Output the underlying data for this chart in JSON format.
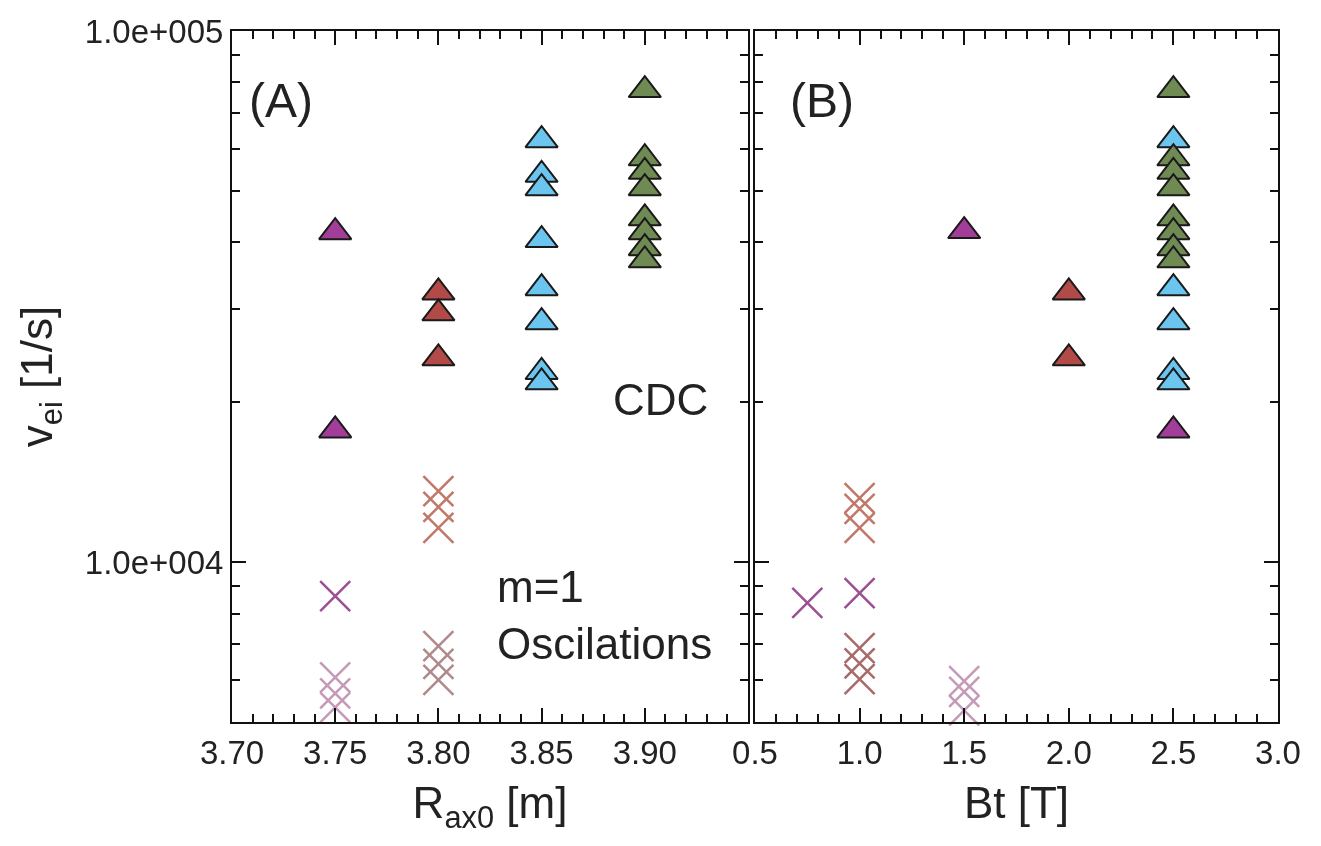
{
  "chart_data": [
    {
      "type": "scatter",
      "xlabel": "R$_{ax0}$ [m]",
      "ylabel": "v$_{ei}$ [1/s]",
      "log": true,
      "grid": false,
      "annotations": [
        "(A)",
        "CDC",
        "m=1\nOscilations"
      ],
      "xlim": [
        3.7,
        3.95
      ],
      "xticks": [
        {
          "value": 3.7,
          "label": "3.70"
        },
        {
          "value": 3.71,
          "label": null
        },
        {
          "value": 3.72,
          "label": null
        },
        {
          "value": 3.73,
          "label": null
        },
        {
          "value": 3.74,
          "label": null
        },
        3.75,
        {
          "value": 3.76,
          "label": null
        },
        {
          "value": 3.77,
          "label": null
        },
        {
          "value": 3.78,
          "label": null
        },
        {
          "value": 3.79,
          "label": null
        },
        {
          "value": 3.8,
          "label": "3.80"
        },
        {
          "value": 3.81,
          "label": null
        },
        {
          "value": 3.82,
          "label": null
        },
        {
          "value": 3.83,
          "label": null
        },
        {
          "value": 3.84,
          "label": null
        },
        3.85,
        {
          "value": 3.86,
          "label": null
        },
        {
          "value": 3.87,
          "label": null
        },
        {
          "value": 3.88,
          "label": null
        },
        {
          "value": 3.89,
          "label": null
        },
        {
          "value": 3.9,
          "label": "3.90"
        },
        {
          "value": 3.91,
          "label": null
        },
        {
          "value": 3.92,
          "label": null
        },
        {
          "value": 3.93,
          "label": null
        },
        {
          "value": 3.94,
          "label": null
        }
      ],
      "ylim": [
        5000,
        100000
      ],
      "yticks": [
        {
          "value": 6000,
          "label": null
        },
        {
          "value": 7000,
          "label": null
        },
        {
          "value": 8000,
          "label": null
        },
        {
          "value": 9000,
          "label": null
        },
        {
          "value": 10000,
          "label": "1.0e+004"
        },
        {
          "value": 20000,
          "label": null
        },
        {
          "value": 30000,
          "label": null
        },
        {
          "value": 40000,
          "label": null
        },
        {
          "value": 50000,
          "label": null
        },
        {
          "value": 60000,
          "label": null
        },
        {
          "value": 70000,
          "label": null
        },
        {
          "value": 80000,
          "label": null
        },
        {
          "value": 90000,
          "label": null
        },
        {
          "value": 100000,
          "label": "1.0e+005"
        }
      ],
      "series": [
        {
          "color": "#a33d9a",
          "marker": "triangle",
          "x": [
            3.75,
            3.75
          ],
          "values": [
            41800,
            17700
          ]
        },
        {
          "color": "#b24a48",
          "marker": "triangle",
          "x": [
            3.8,
            3.8,
            3.8
          ],
          "values": [
            32200,
            29400,
            24200
          ]
        },
        {
          "color": "#6cc5ef",
          "marker": "triangle",
          "x": [
            3.85,
            3.85,
            3.85,
            3.85,
            3.85,
            3.85,
            3.85,
            3.85
          ],
          "values": [
            62300,
            53600,
            50600,
            40400,
            32800,
            28300,
            22800,
            21800
          ]
        },
        {
          "color": "#6f8a52",
          "marker": "triangle",
          "x": [
            3.9,
            3.9,
            3.9,
            3.9,
            3.9,
            3.9,
            3.9,
            3.9
          ],
          "values": [
            77400,
            57600,
            54300,
            50600,
            44400,
            41800,
            39000,
            37000
          ]
        },
        {
          "color": "#c27868",
          "marker": "cross",
          "x": [
            3.8,
            3.8,
            3.8
          ],
          "values": [
            13600,
            12700,
            11600
          ]
        },
        {
          "color": "#b08a8a",
          "marker": "cross",
          "x": [
            3.8,
            3.8,
            3.8
          ],
          "values": [
            6950,
            6430,
            6000
          ]
        },
        {
          "color": "#9b4f94",
          "marker": "cross",
          "x": [
            3.75
          ],
          "values": [
            8630
          ]
        },
        {
          "color": "#c49ab8",
          "marker": "cross",
          "x": [
            3.75,
            3.75,
            3.75
          ],
          "values": [
            6070,
            5660,
            5330
          ]
        }
      ]
    },
    {
      "type": "scatter",
      "xlabel": "Bt [T]",
      "log": true,
      "grid": false,
      "tick_labels": "x",
      "annotations": [
        "(B)"
      ],
      "xlim": [
        0.5,
        3.0
      ],
      "xticks": [
        0.5,
        {
          "value": 0.6,
          "label": null
        },
        {
          "value": 0.7,
          "label": null
        },
        {
          "value": 0.8,
          "label": null
        },
        {
          "value": 0.9,
          "label": null
        },
        {
          "value": 1.0,
          "label": "1.0"
        },
        {
          "value": 1.1,
          "label": null
        },
        {
          "value": 1.2,
          "label": null
        },
        {
          "value": 1.3,
          "label": null
        },
        {
          "value": 1.4,
          "label": null
        },
        1.5,
        {
          "value": 1.6,
          "label": null
        },
        {
          "value": 1.7,
          "label": null
        },
        {
          "value": 1.8,
          "label": null
        },
        {
          "value": 1.9,
          "label": null
        },
        {
          "value": 2.0,
          "label": "2.0"
        },
        {
          "value": 2.1,
          "label": null
        },
        {
          "value": 2.2,
          "label": null
        },
        {
          "value": 2.3,
          "label": null
        },
        {
          "value": 2.4,
          "label": null
        },
        2.5,
        {
          "value": 2.6,
          "label": null
        },
        {
          "value": 2.7,
          "label": null
        },
        {
          "value": 2.8,
          "label": null
        },
        {
          "value": 2.9,
          "label": null
        },
        {
          "value": 3.0,
          "label": "3.0"
        }
      ],
      "ylim": [
        5000,
        100000
      ],
      "yticks": [
        {
          "value": 6000,
          "label": null
        },
        {
          "value": 7000,
          "label": null
        },
        {
          "value": 8000,
          "label": null
        },
        {
          "value": 9000,
          "label": null
        },
        {
          "value": 10000,
          "label": null
        },
        {
          "value": 20000,
          "label": null
        },
        {
          "value": 30000,
          "label": null
        },
        {
          "value": 40000,
          "label": null
        },
        {
          "value": 50000,
          "label": null
        },
        {
          "value": 60000,
          "label": null
        },
        {
          "value": 70000,
          "label": null
        },
        {
          "value": 80000,
          "label": null
        },
        {
          "value": 90000,
          "label": null
        },
        {
          "value": 100000,
          "label": null
        }
      ],
      "series": [
        {
          "color": "#a33d9a",
          "marker": "triangle",
          "x": [
            1.5,
            2.5
          ],
          "values": [
            42000,
            17700
          ]
        },
        {
          "color": "#b24a48",
          "marker": "triangle",
          "x": [
            2.0,
            2.0
          ],
          "values": [
            32200,
            24200
          ]
        },
        {
          "color": "#6cc5ef",
          "marker": "triangle",
          "x": [
            2.5,
            2.5,
            2.5,
            2.5,
            2.5
          ],
          "values": [
            62300,
            32800,
            28300,
            22800,
            21800
          ]
        },
        {
          "color": "#6f8a52",
          "marker": "triangle",
          "x": [
            2.5,
            2.5,
            2.5,
            2.5,
            2.5,
            2.5,
            2.5,
            2.5
          ],
          "values": [
            77400,
            57600,
            54300,
            50600,
            44400,
            41800,
            39000,
            37000
          ]
        },
        {
          "color": "#c27868",
          "marker": "cross",
          "x": [
            1.0,
            1.0,
            1.0
          ],
          "values": [
            13200,
            12600,
            11600
          ]
        },
        {
          "color": "#a86a6a",
          "marker": "cross",
          "x": [
            1.0,
            1.0,
            1.0
          ],
          "values": [
            6890,
            6450,
            6020
          ]
        },
        {
          "color": "#9b4f94",
          "marker": "cross",
          "x": [
            0.75,
            1.0
          ],
          "values": [
            8380,
            8740
          ]
        },
        {
          "color": "#c49ab8",
          "marker": "cross",
          "x": [
            1.5,
            1.5,
            1.5
          ],
          "values": [
            5970,
            5700,
            5260
          ]
        }
      ]
    }
  ]
}
